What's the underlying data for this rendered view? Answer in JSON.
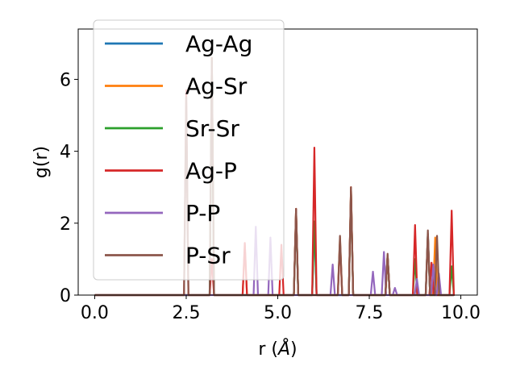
{
  "chart_data": {
    "type": "line",
    "xlabel_main": "r (",
    "xlabel_unit": "Å",
    "xlabel_close": ")",
    "ylabel": "g(r)",
    "xlim": [
      -0.45,
      10.45
    ],
    "ylim": [
      0,
      7.4
    ],
    "xticks": [
      0.0,
      2.5,
      5.0,
      7.5,
      10.0
    ],
    "xtick_labels": [
      "0.0",
      "2.5",
      "5.0",
      "7.5",
      "10.0"
    ],
    "yticks": [
      0,
      2,
      4,
      6
    ],
    "ytick_labels": [
      "0",
      "2",
      "4",
      "6"
    ],
    "grid": false,
    "legend_position": "top-left",
    "peak_half_width": 0.06,
    "x_range": [
      0.0,
      9.8
    ],
    "series": [
      {
        "name": "Ag-Ag",
        "color": "#1f77b4",
        "peaks": [
          [
            3.2,
            6.5
          ],
          [
            5.5,
            2.3
          ],
          [
            6.0,
            2.0
          ],
          [
            7.0,
            2.9
          ],
          [
            8.0,
            1.1
          ],
          [
            9.1,
            1.7
          ]
        ]
      },
      {
        "name": "Ag-Sr",
        "color": "#ff7f0e",
        "peaks": [
          [
            3.2,
            6.6
          ],
          [
            4.1,
            1.4
          ],
          [
            5.5,
            2.4
          ],
          [
            6.7,
            1.6
          ],
          [
            7.0,
            3.0
          ],
          [
            8.0,
            1.1
          ],
          [
            9.3,
            1.6
          ]
        ]
      },
      {
        "name": "Sr-Sr",
        "color": "#2ca02c",
        "peaks": [
          [
            3.2,
            6.5
          ],
          [
            5.5,
            2.3
          ],
          [
            6.0,
            2.05
          ],
          [
            7.0,
            2.9
          ],
          [
            8.0,
            1.1
          ],
          [
            8.75,
            1.0
          ],
          [
            9.1,
            1.7
          ],
          [
            9.75,
            0.8
          ]
        ]
      },
      {
        "name": "Ag-P",
        "color": "#d62728",
        "peaks": [
          [
            2.5,
            5.7
          ],
          [
            3.2,
            1.0
          ],
          [
            4.1,
            1.45
          ],
          [
            5.1,
            1.4
          ],
          [
            5.5,
            2.4
          ],
          [
            6.0,
            4.1
          ],
          [
            6.7,
            1.5
          ],
          [
            7.0,
            3.0
          ],
          [
            8.0,
            1.1
          ],
          [
            8.75,
            1.95
          ],
          [
            9.1,
            1.7
          ],
          [
            9.2,
            0.9
          ],
          [
            9.75,
            2.35
          ]
        ]
      },
      {
        "name": "P-P",
        "color": "#9467bd",
        "peaks": [
          [
            4.4,
            1.9
          ],
          [
            4.8,
            1.6
          ],
          [
            6.5,
            0.85
          ],
          [
            7.6,
            0.65
          ],
          [
            7.9,
            1.2
          ],
          [
            8.2,
            0.2
          ],
          [
            8.8,
            0.45
          ],
          [
            9.25,
            0.85
          ],
          [
            9.4,
            0.6
          ]
        ]
      },
      {
        "name": "P-Sr",
        "color": "#8c564b",
        "peaks": [
          [
            2.5,
            5.5
          ],
          [
            3.2,
            6.6
          ],
          [
            5.5,
            2.4
          ],
          [
            6.7,
            1.65
          ],
          [
            7.0,
            3.0
          ],
          [
            8.0,
            1.15
          ],
          [
            9.1,
            1.8
          ],
          [
            9.35,
            1.65
          ]
        ]
      }
    ]
  }
}
